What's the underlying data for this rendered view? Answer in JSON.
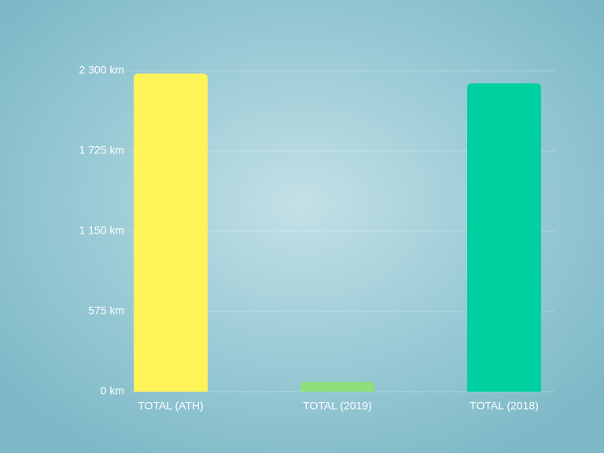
{
  "chart_data": {
    "type": "bar",
    "categories": [
      "TOTAL (ATH)",
      "TOTAL (2019)",
      "TOTAL (2018)"
    ],
    "values": [
      2280,
      70,
      2210
    ],
    "colors": [
      "#fff35a",
      "#8ee07a",
      "#00cfa0"
    ],
    "ylim": [
      0,
      2300
    ],
    "yticks": [
      {
        "value": 0,
        "label": "0 km"
      },
      {
        "value": 575,
        "label": "575 km"
      },
      {
        "value": 1150,
        "label": "1 150 km"
      },
      {
        "value": 1725,
        "label": "1 725 km"
      },
      {
        "value": 2300,
        "label": "2 300 km"
      }
    ],
    "grid": true
  }
}
